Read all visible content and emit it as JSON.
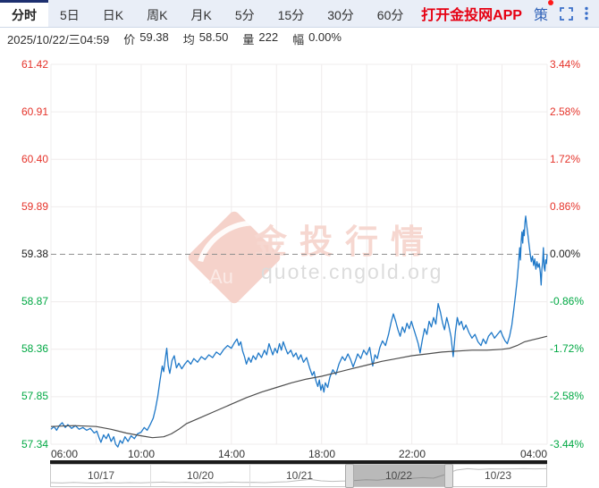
{
  "colors": {
    "accent_navy": "#1d2f6f",
    "link_red": "#e60012",
    "icon_blue": "#2f62b8",
    "tick_red": "#e5342b",
    "tick_green": "#00a843",
    "price_blue": "#1e78c8",
    "avg_gray": "#4d4d4d"
  },
  "tabs": {
    "items": [
      {
        "label": "分时",
        "active": true
      },
      {
        "label": "5日"
      },
      {
        "label": "日K"
      },
      {
        "label": "周K"
      },
      {
        "label": "月K"
      },
      {
        "label": "5分"
      },
      {
        "label": "15分"
      },
      {
        "label": "30分"
      },
      {
        "label": "60分"
      }
    ],
    "app_link": "打开金投网APP",
    "strategy_badge": "策"
  },
  "info_bar": {
    "datetime": "2025/10/22/三04:59",
    "price_label": "价",
    "price": "59.38",
    "avg_label": "均",
    "avg": "58.50",
    "volume_label": "量",
    "volume": "222",
    "change_label": "幅",
    "change": "0.00%"
  },
  "watermark": {
    "logo_text": "Au",
    "title": "金投行情",
    "url": "quote.cngold.org"
  },
  "chart_data": {
    "type": "line",
    "title": "",
    "x_axis": {
      "labels": [
        "06:00",
        "10:00",
        "14:00",
        "18:00",
        "22:00",
        "04:00"
      ],
      "range_minutes": [
        0,
        1320
      ],
      "grid_interval_minutes": 120
    },
    "y_left_ticks": [
      "61.42",
      "60.91",
      "60.40",
      "59.89",
      "59.38",
      "58.87",
      "58.36",
      "57.85",
      "57.34"
    ],
    "y_right_ticks": [
      "3.44%",
      "2.58%",
      "1.72%",
      "0.86%",
      "0.00%",
      "-0.86%",
      "-1.72%",
      "-2.58%",
      "-3.44%"
    ],
    "ylim": [
      57.34,
      61.42
    ],
    "baseline_value": 59.38,
    "grid": true,
    "series": [
      {
        "name": "price",
        "color": "#1e78c8",
        "width": 1.3,
        "points": [
          [
            0,
            57.5
          ],
          [
            8,
            57.53
          ],
          [
            15,
            57.49
          ],
          [
            22,
            57.54
          ],
          [
            30,
            57.57
          ],
          [
            38,
            57.52
          ],
          [
            45,
            57.55
          ],
          [
            55,
            57.51
          ],
          [
            65,
            57.54
          ],
          [
            75,
            57.5
          ],
          [
            85,
            57.52
          ],
          [
            95,
            57.49
          ],
          [
            105,
            57.51
          ],
          [
            115,
            57.46
          ],
          [
            122,
            57.48
          ],
          [
            128,
            57.41
          ],
          [
            133,
            57.36
          ],
          [
            140,
            57.44
          ],
          [
            147,
            57.4
          ],
          [
            153,
            57.45
          ],
          [
            160,
            57.37
          ],
          [
            167,
            57.42
          ],
          [
            172,
            57.34
          ],
          [
            178,
            57.31
          ],
          [
            184,
            57.38
          ],
          [
            190,
            57.35
          ],
          [
            197,
            57.42
          ],
          [
            205,
            57.37
          ],
          [
            213,
            57.43
          ],
          [
            222,
            57.4
          ],
          [
            230,
            57.45
          ],
          [
            240,
            57.47
          ],
          [
            248,
            57.52
          ],
          [
            256,
            57.49
          ],
          [
            264,
            57.55
          ],
          [
            272,
            57.62
          ],
          [
            278,
            57.72
          ],
          [
            284,
            57.85
          ],
          [
            290,
            58.02
          ],
          [
            296,
            58.18
          ],
          [
            300,
            58.12
          ],
          [
            304,
            58.25
          ],
          [
            308,
            58.37
          ],
          [
            312,
            58.18
          ],
          [
            316,
            58.1
          ],
          [
            322,
            58.24
          ],
          [
            328,
            58.29
          ],
          [
            334,
            58.16
          ],
          [
            340,
            58.21
          ],
          [
            348,
            58.15
          ],
          [
            356,
            58.2
          ],
          [
            364,
            58.24
          ],
          [
            372,
            58.2
          ],
          [
            380,
            58.26
          ],
          [
            390,
            58.22
          ],
          [
            400,
            58.28
          ],
          [
            410,
            58.25
          ],
          [
            420,
            58.3
          ],
          [
            430,
            58.27
          ],
          [
            440,
            58.33
          ],
          [
            450,
            58.3
          ],
          [
            460,
            58.36
          ],
          [
            470,
            58.4
          ],
          [
            480,
            58.37
          ],
          [
            488,
            58.43
          ],
          [
            495,
            58.47
          ],
          [
            500,
            58.4
          ],
          [
            505,
            58.44
          ],
          [
            510,
            58.34
          ],
          [
            515,
            58.28
          ],
          [
            520,
            58.2
          ],
          [
            526,
            58.27
          ],
          [
            532,
            58.22
          ],
          [
            538,
            58.29
          ],
          [
            545,
            58.25
          ],
          [
            552,
            58.32
          ],
          [
            560,
            58.27
          ],
          [
            568,
            58.35
          ],
          [
            574,
            58.3
          ],
          [
            580,
            58.42
          ],
          [
            585,
            58.36
          ],
          [
            590,
            58.3
          ],
          [
            596,
            58.37
          ],
          [
            602,
            58.32
          ],
          [
            608,
            58.42
          ],
          [
            613,
            58.35
          ],
          [
            618,
            58.44
          ],
          [
            624,
            58.37
          ],
          [
            630,
            58.31
          ],
          [
            638,
            58.35
          ],
          [
            645,
            58.28
          ],
          [
            652,
            58.32
          ],
          [
            658,
            58.25
          ],
          [
            665,
            58.3
          ],
          [
            672,
            58.22
          ],
          [
            680,
            58.27
          ],
          [
            688,
            58.16
          ],
          [
            695,
            58.08
          ],
          [
            700,
            58.12
          ],
          [
            705,
            58.02
          ],
          [
            710,
            57.96
          ],
          [
            714,
            58.03
          ],
          [
            718,
            57.92
          ],
          [
            722,
            57.98
          ],
          [
            726,
            57.9
          ],
          [
            730,
            58.0
          ],
          [
            736,
            57.95
          ],
          [
            742,
            58.06
          ],
          [
            750,
            58.14
          ],
          [
            758,
            58.09
          ],
          [
            766,
            58.2
          ],
          [
            775,
            58.28
          ],
          [
            782,
            58.24
          ],
          [
            790,
            58.31
          ],
          [
            797,
            58.25
          ],
          [
            804,
            58.17
          ],
          [
            810,
            58.24
          ],
          [
            816,
            58.31
          ],
          [
            824,
            58.26
          ],
          [
            832,
            58.35
          ],
          [
            840,
            58.3
          ],
          [
            848,
            58.38
          ],
          [
            856,
            58.18
          ],
          [
            862,
            58.3
          ],
          [
            868,
            58.26
          ],
          [
            875,
            58.38
          ],
          [
            882,
            58.45
          ],
          [
            890,
            58.4
          ],
          [
            898,
            58.52
          ],
          [
            905,
            58.65
          ],
          [
            911,
            58.74
          ],
          [
            917,
            58.66
          ],
          [
            923,
            58.57
          ],
          [
            929,
            58.5
          ],
          [
            935,
            58.6
          ],
          [
            941,
            58.54
          ],
          [
            947,
            58.64
          ],
          [
            953,
            58.58
          ],
          [
            959,
            58.66
          ],
          [
            965,
            58.58
          ],
          [
            971,
            58.5
          ],
          [
            977,
            58.42
          ],
          [
            982,
            58.32
          ],
          [
            988,
            58.46
          ],
          [
            994,
            58.58
          ],
          [
            1000,
            58.52
          ],
          [
            1006,
            58.66
          ],
          [
            1012,
            58.6
          ],
          [
            1018,
            58.7
          ],
          [
            1024,
            58.63
          ],
          [
            1030,
            58.85
          ],
          [
            1036,
            58.76
          ],
          [
            1042,
            58.64
          ],
          [
            1047,
            58.57
          ],
          [
            1053,
            58.7
          ],
          [
            1058,
            58.62
          ],
          [
            1064,
            58.5
          ],
          [
            1070,
            58.28
          ],
          [
            1076,
            58.55
          ],
          [
            1081,
            58.7
          ],
          [
            1086,
            58.62
          ],
          [
            1092,
            58.66
          ],
          [
            1098,
            58.57
          ],
          [
            1104,
            58.62
          ],
          [
            1112,
            58.54
          ],
          [
            1120,
            58.48
          ],
          [
            1128,
            58.52
          ],
          [
            1136,
            58.44
          ],
          [
            1144,
            58.4
          ],
          [
            1150,
            58.47
          ],
          [
            1157,
            58.42
          ],
          [
            1164,
            58.5
          ],
          [
            1172,
            58.54
          ],
          [
            1180,
            58.48
          ],
          [
            1188,
            58.52
          ],
          [
            1196,
            58.56
          ],
          [
            1202,
            58.5
          ],
          [
            1208,
            58.45
          ],
          [
            1214,
            58.42
          ],
          [
            1220,
            58.5
          ],
          [
            1226,
            58.62
          ],
          [
            1231,
            58.78
          ],
          [
            1236,
            58.95
          ],
          [
            1240,
            59.1
          ],
          [
            1244,
            59.28
          ],
          [
            1247,
            59.45
          ],
          [
            1249,
            59.32
          ],
          [
            1251,
            59.52
          ],
          [
            1253,
            59.62
          ],
          [
            1255,
            59.5
          ],
          [
            1257,
            59.64
          ],
          [
            1259,
            59.58
          ],
          [
            1261,
            59.72
          ],
          [
            1263,
            59.79
          ],
          [
            1266,
            59.68
          ],
          [
            1269,
            59.58
          ],
          [
            1272,
            59.48
          ],
          [
            1275,
            59.38
          ],
          [
            1278,
            59.3
          ],
          [
            1281,
            59.36
          ],
          [
            1284,
            59.26
          ],
          [
            1287,
            59.33
          ],
          [
            1290,
            59.22
          ],
          [
            1293,
            59.3
          ],
          [
            1296,
            59.24
          ],
          [
            1299,
            59.28
          ],
          [
            1302,
            59.18
          ],
          [
            1304,
            59.05
          ],
          [
            1306,
            59.22
          ],
          [
            1308,
            59.3
          ],
          [
            1310,
            59.45
          ],
          [
            1312,
            59.24
          ],
          [
            1314,
            59.2
          ],
          [
            1316,
            59.32
          ],
          [
            1318,
            59.28
          ],
          [
            1320,
            59.38
          ]
        ]
      },
      {
        "name": "average",
        "color": "#4d4d4d",
        "width": 1.2,
        "points": [
          [
            0,
            57.53
          ],
          [
            60,
            57.54
          ],
          [
            120,
            57.53
          ],
          [
            160,
            57.5
          ],
          [
            200,
            57.46
          ],
          [
            240,
            57.43
          ],
          [
            270,
            57.41
          ],
          [
            300,
            57.42
          ],
          [
            320,
            57.45
          ],
          [
            340,
            57.5
          ],
          [
            360,
            57.56
          ],
          [
            400,
            57.63
          ],
          [
            440,
            57.7
          ],
          [
            480,
            57.77
          ],
          [
            520,
            57.84
          ],
          [
            560,
            57.9
          ],
          [
            600,
            57.95
          ],
          [
            640,
            58.0
          ],
          [
            680,
            58.04
          ],
          [
            720,
            58.07
          ],
          [
            760,
            58.11
          ],
          [
            800,
            58.15
          ],
          [
            840,
            58.19
          ],
          [
            880,
            58.23
          ],
          [
            920,
            58.26
          ],
          [
            960,
            58.29
          ],
          [
            1000,
            58.31
          ],
          [
            1040,
            58.33
          ],
          [
            1080,
            58.34
          ],
          [
            1120,
            58.35
          ],
          [
            1160,
            58.35
          ],
          [
            1200,
            58.36
          ],
          [
            1220,
            58.37
          ],
          [
            1240,
            58.4
          ],
          [
            1260,
            58.44
          ],
          [
            1280,
            58.46
          ],
          [
            1300,
            58.48
          ],
          [
            1320,
            58.5
          ]
        ]
      }
    ],
    "navigator": {
      "dates": [
        "10/17",
        "10/20",
        "10/21",
        "10/22",
        "10/23"
      ],
      "selected_index": 3,
      "spark": [
        0.1,
        0.08,
        0.11,
        0.09,
        0.07,
        0.1,
        0.08,
        0.1,
        0.09,
        0.11,
        0.13,
        0.1,
        0.12,
        0.09,
        0.12,
        0.1,
        0.13,
        0.11,
        0.12,
        0.1,
        0.13,
        0.15,
        0.22,
        0.28,
        0.2,
        0.17,
        0.19,
        0.22,
        0.26,
        0.24,
        0.3,
        0.28,
        0.34,
        0.38,
        0.35,
        0.55,
        0.8,
        0.88,
        0.84,
        0.87,
        0.86,
        0.87,
        0.88,
        0.87,
        0.88
      ]
    }
  }
}
